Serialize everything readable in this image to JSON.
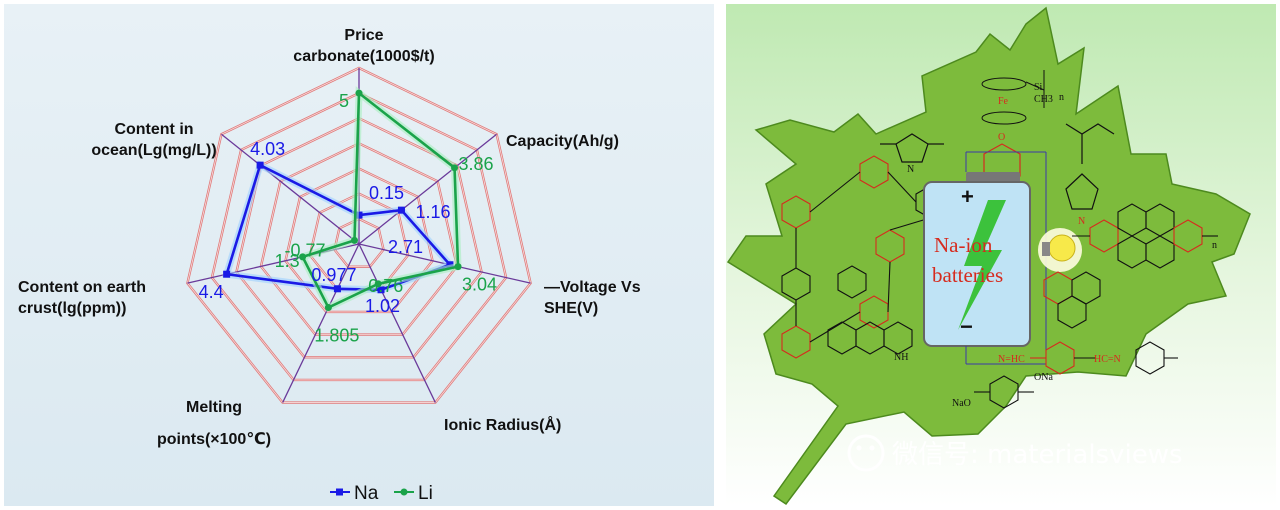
{
  "radar": {
    "axes": [
      {
        "lines": [
          "Price",
          "carbonate(1000$/t)"
        ]
      },
      {
        "lines": [
          "Capacity(Ah/g)"
        ]
      },
      {
        "lines": [
          "—Voltage Vs",
          "SHE(V)"
        ]
      },
      {
        "lines": [
          "Ionic Radius(Å)"
        ]
      },
      {
        "lines": [
          "Melting",
          "points(×100℃)"
        ]
      },
      {
        "lines": [
          "Content on earth",
          "crust(lg(ppm))"
        ]
      },
      {
        "lines": [
          "Content in",
          "ocean(Lg(mg/L))"
        ]
      }
    ],
    "legend": {
      "na": "Na",
      "li": "Li"
    },
    "colors": {
      "na": "#1a1ae6",
      "li": "#1aa34a",
      "grid": "#e07a7a",
      "spoke": "#6a3a9a"
    }
  },
  "chart_data": {
    "type": "radar",
    "categories": [
      "Price carbonate(1000$/t)",
      "Capacity(Ah/g)",
      "—Voltage Vs SHE(V)",
      "Ionic Radius(Å)",
      "Melting points(×100℃)",
      "Content on earth crust(lg(ppm))",
      "Content in ocean(Lg(mg/L))"
    ],
    "series": [
      {
        "name": "Na",
        "values": [
          0.15,
          1.16,
          2.71,
          1.02,
          0.977,
          4.4,
          4.03
        ],
        "labels": [
          "0.15",
          "1.16",
          "2.71",
          "1.02",
          "0.977",
          "4.4",
          "4.03"
        ]
      },
      {
        "name": "Li",
        "values": [
          5,
          3.86,
          3.04,
          0.76,
          1.805,
          1.3,
          -0.77
        ],
        "labels": [
          "5",
          "3.86",
          "3.04",
          "0.76",
          "1.805",
          "1.3",
          "-0.77"
        ]
      }
    ],
    "rlim": [
      -1,
      6
    ]
  },
  "illustration": {
    "battery_text": [
      "Na-ion",
      "batteries"
    ],
    "plus": "+",
    "minus": "−",
    "chem_labels": [
      "Fe",
      "Si",
      "CH3",
      "n",
      "N",
      "O",
      "N=HC",
      "HC=N",
      "ONa",
      "NaO",
      "NH"
    ]
  },
  "watermark": {
    "text": "微信号: materialsviews"
  }
}
